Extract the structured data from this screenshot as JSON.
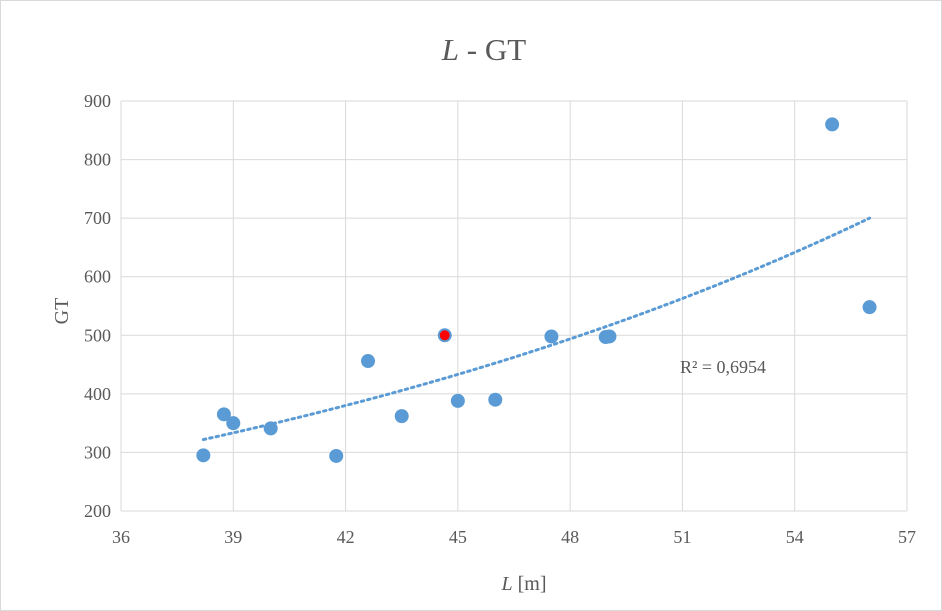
{
  "chart_data": {
    "type": "scatter",
    "title_italic": "L",
    "title_rest": " - GT",
    "xlabel_italic": "L",
    "xlabel_rest": " [m]",
    "ylabel": "GT",
    "xlim": [
      36,
      57
    ],
    "ylim": [
      200,
      900
    ],
    "xticks": [
      36,
      39,
      42,
      45,
      48,
      51,
      54,
      57
    ],
    "yticks": [
      200,
      300,
      400,
      500,
      600,
      700,
      800,
      900
    ],
    "grid": true,
    "legend": "none",
    "points": [
      {
        "x": 38.2,
        "y": 295
      },
      {
        "x": 38.75,
        "y": 365
      },
      {
        "x": 39.0,
        "y": 350
      },
      {
        "x": 40.0,
        "y": 341
      },
      {
        "x": 41.75,
        "y": 294
      },
      {
        "x": 42.6,
        "y": 456
      },
      {
        "x": 43.5,
        "y": 362
      },
      {
        "x": 45.0,
        "y": 388
      },
      {
        "x": 46.0,
        "y": 390
      },
      {
        "x": 47.5,
        "y": 498
      },
      {
        "x": 48.95,
        "y": 497
      },
      {
        "x": 49.05,
        "y": 498
      },
      {
        "x": 55.0,
        "y": 860
      },
      {
        "x": 56.0,
        "y": 548
      }
    ],
    "highlight_point": {
      "x": 44.65,
      "y": 500
    },
    "trendline": {
      "type": "exponential",
      "x_start": 38.2,
      "y_start": 322,
      "x_end": 56.0,
      "y_end": 700
    },
    "r2_text": "R² = 0,6954",
    "colors": {
      "points": "#5b9bd5",
      "highlight_fill": "#ff0000",
      "highlight_stroke": "#5b9bd5",
      "trendline": "#5b9bd5",
      "grid": "#d9d9d9",
      "text": "#595959"
    }
  }
}
